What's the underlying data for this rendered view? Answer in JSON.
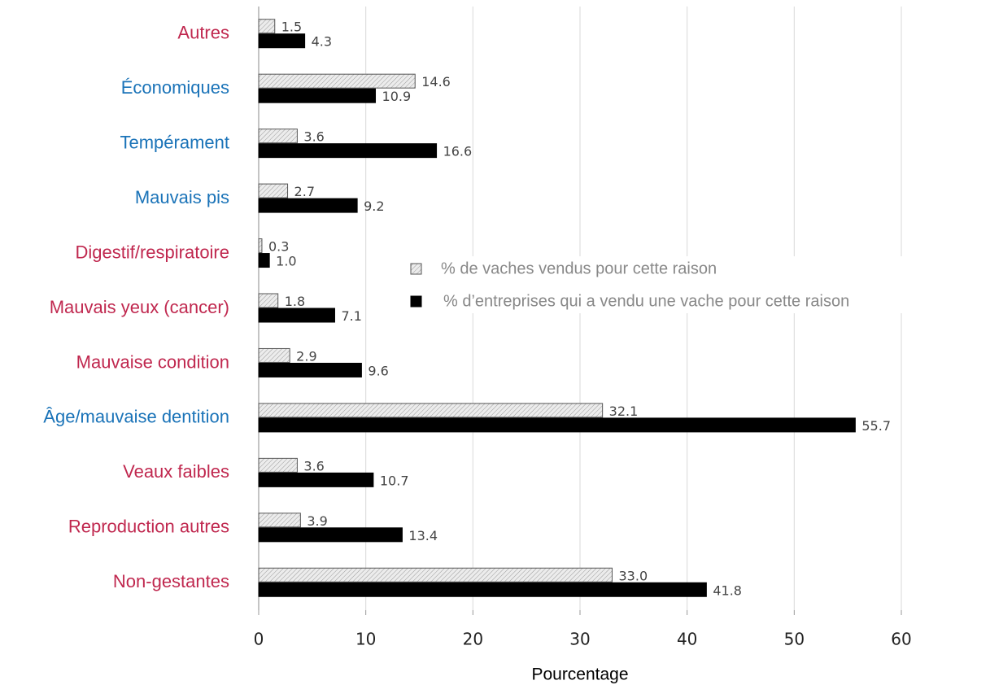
{
  "chart_data": {
    "type": "bar",
    "orientation": "horizontal",
    "categories": [
      "Autres",
      "Économiques",
      "Tempérament",
      "Mauvais pis",
      "Digestif/respiratoire",
      "Mauvais yeux (cancer)",
      "Mauvaise condition",
      "Âge/mauvaise dentition",
      "Veaux faibles",
      "Reproduction autres",
      "Non-gestantes"
    ],
    "category_colors": [
      "#c0284f",
      "#1a73b8",
      "#1a73b8",
      "#1a73b8",
      "#c0284f",
      "#c0284f",
      "#c0284f",
      "#1a73b8",
      "#c0284f",
      "#c0284f",
      "#c0284f"
    ],
    "series": [
      {
        "name": "% de vaches vendus pour cette raison",
        "color": "#e4e4e4",
        "hatch": true,
        "values": [
          1.5,
          14.6,
          3.6,
          2.7,
          0.3,
          1.8,
          2.9,
          32.1,
          3.6,
          3.9,
          33.0
        ],
        "value_labels": [
          "1.5",
          "14.6",
          "3.6",
          "2.7",
          "0.3",
          "1.8",
          "2.9",
          "32.1",
          "3.6",
          "3.9",
          "33.0"
        ]
      },
      {
        "name": "% d’entreprises qui a vendu une vache pour cette raison",
        "color": "#000000",
        "values": [
          4.3,
          10.9,
          16.6,
          9.2,
          1.0,
          7.1,
          9.6,
          55.7,
          10.7,
          13.4,
          41.8
        ],
        "value_labels": [
          "4.3",
          "10.9",
          "16.6",
          "9.2",
          "1.0",
          "7.1",
          "9.6",
          "55.7",
          "10.7",
          "13.4",
          "41.8"
        ]
      }
    ],
    "xlabel": "Pourcentage",
    "xlim": [
      0,
      60
    ],
    "xticks": [
      0,
      10,
      20,
      30,
      40,
      50,
      60
    ],
    "grid": true
  }
}
